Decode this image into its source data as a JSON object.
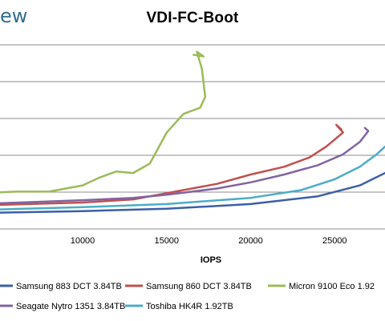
{
  "brand": {
    "text": "ew",
    "color": "#2f6f8f"
  },
  "chart_data": {
    "type": "line",
    "title": "VDI-FC-Boot",
    "xlabel": "IOPS",
    "ylabel": "",
    "xlim": [
      0,
      28000
    ],
    "ylim": [
      0,
      12
    ],
    "x_ticks": [
      10000,
      15000,
      20000,
      25000
    ],
    "x_tick_labels": [
      "10000",
      "15000",
      "20000",
      "25000"
    ],
    "y_gridlines": [
      2,
      4,
      6,
      8,
      10
    ],
    "grid": true,
    "legend_position": "bottom",
    "series": [
      {
        "name": "Samsung 883 DCT 3.84TB",
        "color": "#3b5fa7",
        "points": [
          [
            0,
            1.0
          ],
          [
            5000,
            1.05
          ],
          [
            10000,
            1.15
          ],
          [
            15000,
            1.3
          ],
          [
            20000,
            1.6
          ],
          [
            24000,
            2.1
          ],
          [
            26500,
            2.8
          ],
          [
            28000,
            3.6
          ]
        ]
      },
      {
        "name": "Samsung 860 DCT 3.84TB",
        "color": "#c0504d",
        "points": [
          [
            0,
            1.4
          ],
          [
            5000,
            1.55
          ],
          [
            10000,
            1.7
          ],
          [
            13000,
            1.9
          ],
          [
            15000,
            2.3
          ],
          [
            18000,
            2.9
          ],
          [
            20000,
            3.5
          ],
          [
            22000,
            4.0
          ],
          [
            23500,
            4.6
          ],
          [
            24500,
            5.3
          ],
          [
            25500,
            6.2
          ],
          [
            25100,
            6.7
          ],
          [
            25400,
            6.4
          ]
        ]
      },
      {
        "name": "Micron 9100 Eco 1.92",
        "color": "#9bbb59",
        "points": [
          [
            0,
            1.7
          ],
          [
            2000,
            2.0
          ],
          [
            4000,
            2.3
          ],
          [
            6000,
            2.4
          ],
          [
            8000,
            2.4
          ],
          [
            10000,
            2.8
          ],
          [
            11000,
            3.3
          ],
          [
            12000,
            3.7
          ],
          [
            13000,
            3.6
          ],
          [
            14000,
            4.2
          ],
          [
            15000,
            6.2
          ],
          [
            16000,
            7.4
          ],
          [
            17000,
            7.8
          ],
          [
            17300,
            8.5
          ],
          [
            17100,
            10.3
          ],
          [
            16800,
            11.4
          ],
          [
            17200,
            11.1
          ],
          [
            16600,
            11.2
          ]
        ]
      },
      {
        "name": "Seagate Nytro 1351 3.84TB",
        "color": "#8064a2",
        "points": [
          [
            0,
            1.5
          ],
          [
            5000,
            1.65
          ],
          [
            10000,
            1.85
          ],
          [
            13000,
            2.0
          ],
          [
            15000,
            2.2
          ],
          [
            18000,
            2.6
          ],
          [
            20000,
            3.0
          ],
          [
            22000,
            3.5
          ],
          [
            24000,
            4.1
          ],
          [
            25500,
            4.8
          ],
          [
            26500,
            5.6
          ],
          [
            27000,
            6.3
          ],
          [
            26800,
            6.5
          ]
        ]
      },
      {
        "name": "Toshiba HK4R 1.92TB",
        "color": "#4bacc6",
        "points": [
          [
            0,
            1.15
          ],
          [
            5000,
            1.25
          ],
          [
            10000,
            1.4
          ],
          [
            15000,
            1.6
          ],
          [
            20000,
            2.0
          ],
          [
            23000,
            2.5
          ],
          [
            25000,
            3.2
          ],
          [
            26500,
            4.0
          ],
          [
            27500,
            4.8
          ],
          [
            28000,
            5.3
          ]
        ]
      }
    ]
  }
}
